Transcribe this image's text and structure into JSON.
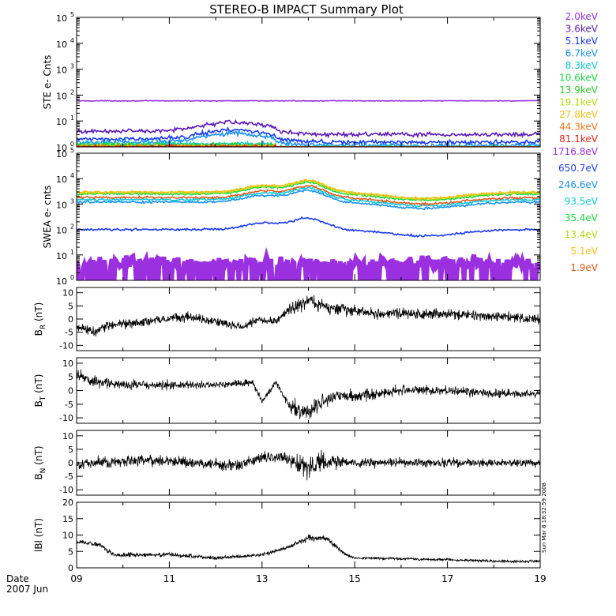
{
  "title": "STEREO-B IMPACT Summary Plot",
  "timestamp": "Sun Mar  8 18:32:59 2008",
  "footer": {
    "date_label": "Date",
    "year_month": "2007 Jun"
  },
  "x_ticks": [
    "09",
    "11",
    "13",
    "15",
    "17",
    "19"
  ],
  "x_range": [
    9,
    19
  ],
  "chart_data": [
    {
      "type": "line",
      "ylabel": "STE e- Cnts",
      "yscale": "log",
      "ylim": [
        1,
        100000
      ],
      "yticks": [
        {
          "b": "10",
          "e": "0"
        },
        {
          "b": "10",
          "e": "1"
        },
        {
          "b": "10",
          "e": "2"
        },
        {
          "b": "10",
          "e": "3"
        },
        {
          "b": "10",
          "e": "4"
        },
        {
          "b": "10",
          "e": "5"
        }
      ],
      "series": [
        {
          "name": "2.0keV",
          "color": "#9b30e0",
          "approx_level": 60
        },
        {
          "name": "3.6keV",
          "color": "#5a1ab8",
          "approx_level": 4
        },
        {
          "name": "5.1keV",
          "color": "#1a3aee",
          "approx_level": 2
        },
        {
          "name": "6.7keV",
          "color": "#1a90ee",
          "approx_level": 1.5
        },
        {
          "name": "8.3keV",
          "color": "#10c8d8",
          "approx_level": 1.3
        },
        {
          "name": "10.6keV",
          "color": "#18d840",
          "approx_level": 1.2
        },
        {
          "name": "13.9keV",
          "color": "#2ec82e",
          "approx_level": 1.1
        },
        {
          "name": "19.1keV",
          "color": "#b8d810",
          "approx_level": 1.05
        },
        {
          "name": "27.8keV",
          "color": "#f0c018",
          "approx_level": 1.02
        },
        {
          "name": "44.3keV",
          "color": "#f07818",
          "approx_level": 1.01
        },
        {
          "name": "81.1keV",
          "color": "#e02818",
          "approx_level": 1.0
        }
      ]
    },
    {
      "type": "line",
      "ylabel": "SWEA e- cnts",
      "yscale": "log",
      "ylim": [
        1,
        100000
      ],
      "yticks": [
        {
          "b": "10",
          "e": "0"
        },
        {
          "b": "10",
          "e": "1"
        },
        {
          "b": "10",
          "e": "2"
        },
        {
          "b": "10",
          "e": "3"
        },
        {
          "b": "10",
          "e": "4"
        },
        {
          "b": "10",
          "e": "5"
        }
      ],
      "series": [
        {
          "name": "1716.8eV",
          "color": "#9b30e0",
          "approx_level": 5
        },
        {
          "name": "650.7eV",
          "color": "#1a3aee",
          "approx_level": 100
        },
        {
          "name": "246.6eV",
          "color": "#1a90ee",
          "approx_level": 1200
        },
        {
          "name": "93.5eV",
          "color": "#10c8d8",
          "approx_level": 1500
        },
        {
          "name": "35.4eV",
          "color": "#18d840",
          "approx_level": 2500
        },
        {
          "name": "13.4eV",
          "color": "#b8d810",
          "approx_level": 2800
        },
        {
          "name": "5.1eV",
          "color": "#f0c018",
          "approx_level": 3000
        },
        {
          "name": "1.9eV",
          "color": "#e05818",
          "approx_level": 1800
        }
      ]
    },
    {
      "type": "line",
      "ylabel_main": "B",
      "ylabel_sub": "R",
      "ylabel_unit": " (nT)",
      "ylim": [
        -12,
        12
      ],
      "yticks": [
        "-10",
        "-5",
        "0",
        "5",
        "10"
      ],
      "ytick_values": [
        -10,
        -5,
        0,
        5,
        10
      ],
      "series": [
        {
          "color": "#000000"
        }
      ]
    },
    {
      "type": "line",
      "ylabel_main": "B",
      "ylabel_sub": "T",
      "ylabel_unit": " (nT)",
      "ylim": [
        -12,
        12
      ],
      "yticks": [
        "-10",
        "-5",
        "0",
        "5",
        "10"
      ],
      "ytick_values": [
        -10,
        -5,
        0,
        5,
        10
      ],
      "series": [
        {
          "color": "#000000"
        }
      ]
    },
    {
      "type": "line",
      "ylabel_main": "B",
      "ylabel_sub": "N",
      "ylabel_unit": " (nT)",
      "ylim": [
        -12,
        12
      ],
      "yticks": [
        "-10",
        "-5",
        "0",
        "5",
        "10"
      ],
      "ytick_values": [
        -10,
        -5,
        0,
        5,
        10
      ],
      "series": [
        {
          "color": "#000000"
        }
      ]
    },
    {
      "type": "line",
      "ylabel_main": "lBl",
      "ylabel_sub": "",
      "ylabel_unit": " (nT)",
      "ylim": [
        0,
        20
      ],
      "yticks": [
        "0",
        "5",
        "10",
        "15",
        "20"
      ],
      "ytick_values": [
        0,
        5,
        10,
        15,
        20
      ],
      "series": [
        {
          "color": "#000000"
        }
      ]
    }
  ]
}
